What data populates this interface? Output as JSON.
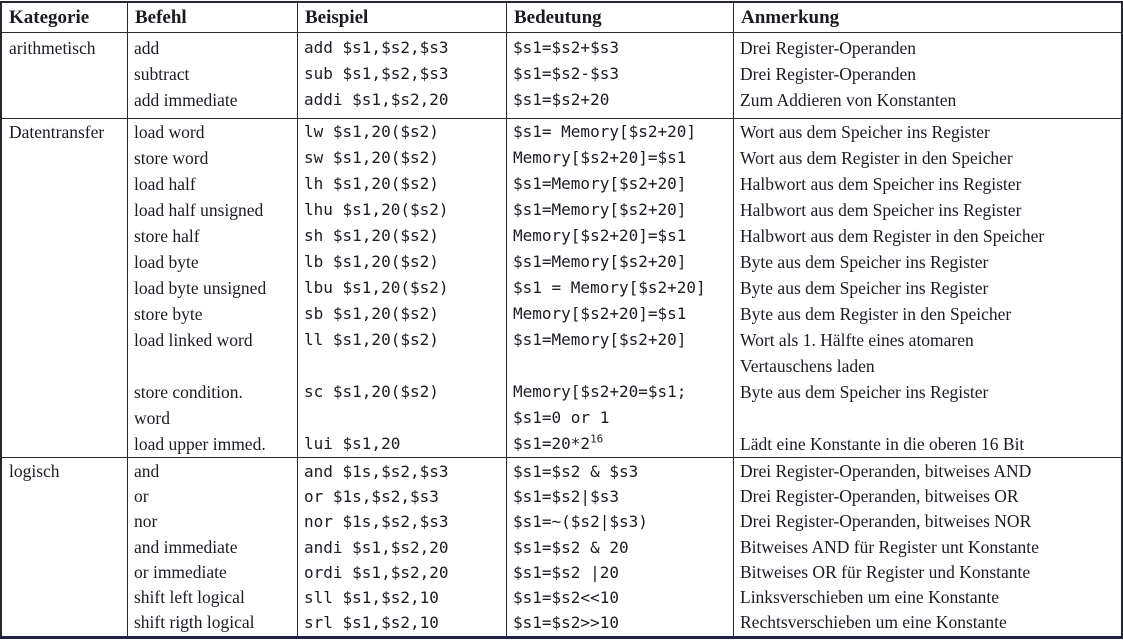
{
  "table": {
    "headers": [
      "Kategorie",
      "Befehl",
      "Beispiel",
      "Bedeutung",
      "Anmerkung"
    ],
    "sections": [
      {
        "kategorie": "arithmetisch",
        "lines": [
          {
            "befehl": "add",
            "beispiel": "add $s1,$s2,$s3",
            "bedeutung": "$s1=$s2+$s3",
            "anmerkung": "Drei Register-Operanden"
          },
          {
            "befehl": "subtract",
            "beispiel": "sub $s1,$s2,$s3",
            "bedeutung": "$s1=$s2-$s3",
            "anmerkung": "Drei Register-Operanden"
          },
          {
            "befehl": "add immediate",
            "beispiel": "addi $s1,$s2,20",
            "bedeutung": "$s1=$s2+20",
            "anmerkung": "Zum Addieren von Konstanten"
          }
        ]
      },
      {
        "kategorie": "Datentransfer",
        "lines": [
          {
            "befehl": "load word",
            "beispiel": "lw $s1,20($s2)",
            "bedeutung": "$s1= Memory[$s2+20]",
            "anmerkung": "Wort aus dem Speicher ins Register"
          },
          {
            "befehl": "store word",
            "beispiel": "sw $s1,20($s2)",
            "bedeutung": "Memory[$s2+20]=$s1",
            "anmerkung": "Wort aus dem Register in den Speicher"
          },
          {
            "befehl": "load half",
            "beispiel": "lh $s1,20($s2)",
            "bedeutung": "$s1=Memory[$s2+20]",
            "anmerkung": "Halbwort aus dem Speicher ins Register"
          },
          {
            "befehl": "load half unsigned",
            "beispiel": "lhu $s1,20($s2)",
            "bedeutung": "$s1=Memory[$s2+20]",
            "anmerkung": "Halbwort aus dem Speicher ins Register"
          },
          {
            "befehl": "store half",
            "beispiel": "sh $s1,20($s2)",
            "bedeutung": "Memory[$s2+20]=$s1",
            "anmerkung": "Halbwort aus dem Register in den Speicher"
          },
          {
            "befehl": "load byte",
            "beispiel": "lb $s1,20($s2)",
            "bedeutung": "$s1=Memory[$s2+20]",
            "anmerkung": "Byte aus dem Speicher ins Register"
          },
          {
            "befehl": "load byte unsigned",
            "beispiel": "lbu $s1,20($s2)",
            "bedeutung": "$s1 = Memory[$s2+20]",
            "anmerkung": "Byte aus dem Speicher ins Register"
          },
          {
            "befehl": "store byte",
            "beispiel": "sb $s1,20($s2)",
            "bedeutung": "Memory[$s2+20]=$s1",
            "anmerkung": "Byte aus dem Register in den Speicher"
          },
          {
            "befehl": "load linked word",
            "beispiel": "ll $s1,20($s2)",
            "bedeutung": "$s1=Memory[$s2+20]",
            "anmerkung": "Wort als 1. Hälfte eines atomaren"
          },
          {
            "befehl": "",
            "beispiel": "",
            "bedeutung": "",
            "anmerkung": "Vertauschens laden"
          },
          {
            "befehl": "store condition.",
            "beispiel": "sc $s1,20($s2)",
            "bedeutung": "Memory[$s2+20=$s1;",
            "anmerkung": "Byte aus dem Speicher ins Register"
          },
          {
            "befehl": "word",
            "beispiel": "",
            "bedeutung": "$s1=0 or 1",
            "anmerkung": ""
          },
          {
            "befehl": "load upper immed.",
            "beispiel": "lui $s1,20",
            "bedeutung": "$s1=20*2",
            "bedeutung_sup": "16",
            "anmerkung": "Lädt eine Konstante in die oberen 16 Bit"
          }
        ]
      },
      {
        "kategorie": "logisch",
        "lines": [
          {
            "befehl": "and",
            "beispiel": "and $1s,$s2,$s3",
            "bedeutung": "$s1=$s2 & $s3",
            "anmerkung": "Drei Register-Operanden, bitweises AND"
          },
          {
            "befehl": "or",
            "beispiel": "or $1s,$s2,$s3",
            "bedeutung": "$s1=$s2|$s3",
            "anmerkung": "Drei Register-Operanden, bitweises OR"
          },
          {
            "befehl": "nor",
            "beispiel": "nor $1s,$s2,$s3",
            "bedeutung": "$s1=~($s2|$s3)",
            "anmerkung": "Drei Register-Operanden, bitweises NOR"
          },
          {
            "befehl": "and immediate",
            "beispiel": "andi $s1,$s2,20",
            "bedeutung": "$s1=$s2 & 20",
            "anmerkung": "Bitweises AND für Register unt Konstante"
          },
          {
            "befehl": "or immediate",
            "beispiel": "ordi $s1,$s2,20",
            "bedeutung": "$s1=$s2 |20",
            "anmerkung": "Bitweises OR für Register und Konstante"
          },
          {
            "befehl": "shift left logical",
            "beispiel": "sll $s1,$s2,10",
            "bedeutung": "$s1=$s2<<10",
            "anmerkung": "Linksverschieben um eine Konstante"
          },
          {
            "befehl": "shift rigth logical",
            "beispiel": "srl $s1,$s2,10",
            "bedeutung": "$s1=$s2>>10",
            "anmerkung": "Rechtsverschieben um eine Konstante"
          }
        ]
      }
    ]
  },
  "colors": {
    "background": "#ffffff",
    "text": "#1b1b24",
    "grid_line": "#2b2b2e",
    "bottom_rule": "#20204a"
  }
}
